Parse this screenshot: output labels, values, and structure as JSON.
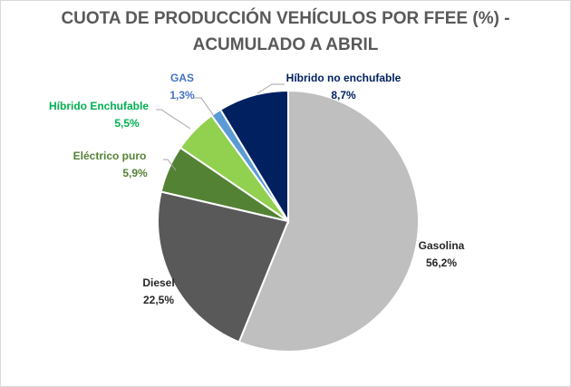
{
  "chart_data": {
    "type": "pie",
    "title_line1": "CUOTA DE PRODUCCIÓN VEHÍCULOS POR FFEE (%) -",
    "title_line2": "ACUMULADO A ABRIL",
    "slices": [
      {
        "label": "Gasolina",
        "value": 56.2,
        "display": "56,2%",
        "color": "#bfbfbf",
        "label_color": "#262626"
      },
      {
        "label": "Diesel",
        "value": 22.5,
        "display": "22,5%",
        "color": "#595959",
        "label_color": "#262626"
      },
      {
        "label": "Eléctrico puro",
        "value": 5.9,
        "display": "5,9%",
        "color": "#548235",
        "label_color": "#548235"
      },
      {
        "label": "Híbrido Enchufable",
        "value": 5.5,
        "display": "5,5%",
        "color": "#92d050",
        "label_color": "#00b050"
      },
      {
        "label": "GAS",
        "value": 1.3,
        "display": "1,3%",
        "color": "#5b9bd5",
        "label_color": "#4472c4"
      },
      {
        "label": "Híbrido no enchufable",
        "value": 8.7,
        "display": "8,7%",
        "color": "#002060",
        "label_color": "#002060"
      }
    ],
    "start": "12 o'clock",
    "direction": "clockwise",
    "legend": "none"
  }
}
